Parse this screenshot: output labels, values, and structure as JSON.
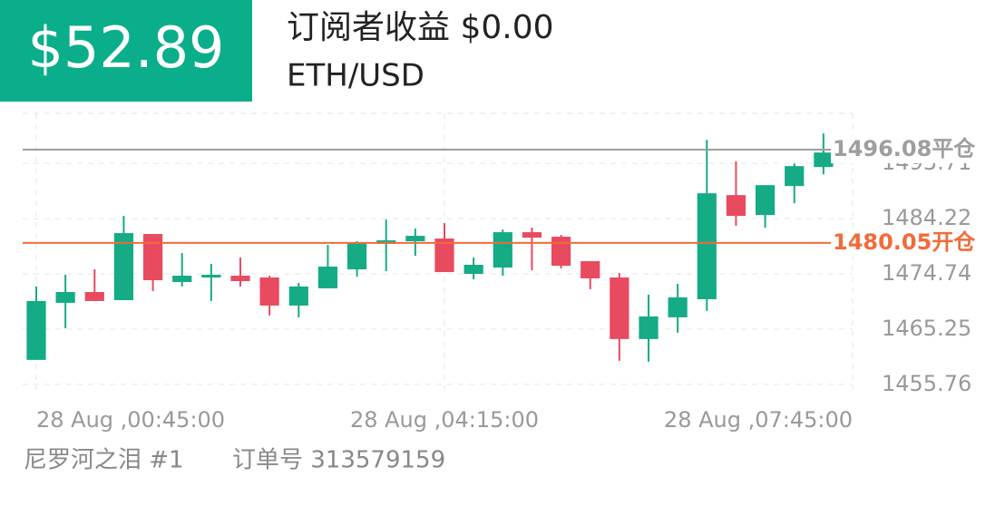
{
  "header": {
    "profit": "$52.89",
    "subscriber_profit": "订阅者收益 $0.00",
    "pair": "ETH/USD"
  },
  "footer": {
    "trader": "尼罗河之泪 #1",
    "order": "订单号 313579159"
  },
  "chart_data": {
    "type": "candlestick",
    "up_color": "#14ab85",
    "down_color": "#e84a5f",
    "x": [
      45,
      60,
      75,
      90,
      105,
      120,
      135,
      150,
      165,
      180,
      195,
      210,
      225,
      240,
      255,
      270,
      285,
      300,
      315,
      330,
      345,
      360,
      375,
      390,
      405,
      420,
      435,
      450
    ],
    "open": [
      1459.96,
      1469.76,
      1471.62,
      1470.22,
      1481.58,
      1473.33,
      1474.11,
      1474.42,
      1474.11,
      1469.29,
      1472.25,
      1475.51,
      1479.87,
      1480.33,
      1480.8,
      1474.73,
      1475.82,
      1481.89,
      1481.11,
      1476.91,
      1474.11,
      1463.54,
      1467.27,
      1470.38,
      1488.26,
      1484.84,
      1489.82,
      1493.08
    ],
    "high": [
      1472.56,
      1474.58,
      1475.51,
      1484.69,
      1481.58,
      1478.31,
      1476.44,
      1477.53,
      1474.42,
      1473.18,
      1479.71,
      1480.33,
      1484.06,
      1482.51,
      1483.44,
      1477.53,
      1482.35,
      1482.67,
      1481.42,
      1476.91,
      1474.89,
      1471.16,
      1473.02,
      1497.75,
      1494.02,
      1489.97,
      1493.71,
      1498.84
    ],
    "low": [
      1459.96,
      1465.4,
      1470.07,
      1470.22,
      1471.78,
      1472.56,
      1470.07,
      1472.56,
      1467.58,
      1467.27,
      1472.25,
      1474.27,
      1475.2,
      1477.84,
      1475.04,
      1473.8,
      1474.42,
      1475.36,
      1475.67,
      1472.09,
      1459.8,
      1459.65,
      1464.62,
      1468.36,
      1482.98,
      1482.66,
      1486.86,
      1491.84
    ],
    "close": [
      1470.07,
      1471.62,
      1470.07,
      1481.73,
      1473.64,
      1474.42,
      1474.58,
      1473.49,
      1469.29,
      1472.56,
      1475.98,
      1480.02,
      1480.49,
      1481.26,
      1475.04,
      1476.29,
      1481.89,
      1480.95,
      1476.13,
      1473.96,
      1463.54,
      1467.42,
      1470.69,
      1488.57,
      1484.69,
      1489.97,
      1493.24,
      1495.57
    ],
    "xlim": [
      45,
      465
    ],
    "xticks": [
      {
        "value": 45,
        "label": "28 Aug ,00:45:00"
      },
      {
        "value": 255,
        "label": "28 Aug ,04:15:00"
      },
      {
        "value": 465,
        "label": "28 Aug ,07:45:00"
      }
    ],
    "ylim": [
      1454.8,
      1502.3
    ],
    "yticks": [
      1455.76,
      1465.25,
      1474.74,
      1484.22,
      1493.71
    ],
    "grid": true,
    "reference_lines": [
      {
        "value": 1496.08,
        "label": "1496.08平仓",
        "color": "#9e9e9e"
      },
      {
        "value": 1480.05,
        "label": "1480.05开仓",
        "color": "#f26b3a"
      }
    ]
  }
}
